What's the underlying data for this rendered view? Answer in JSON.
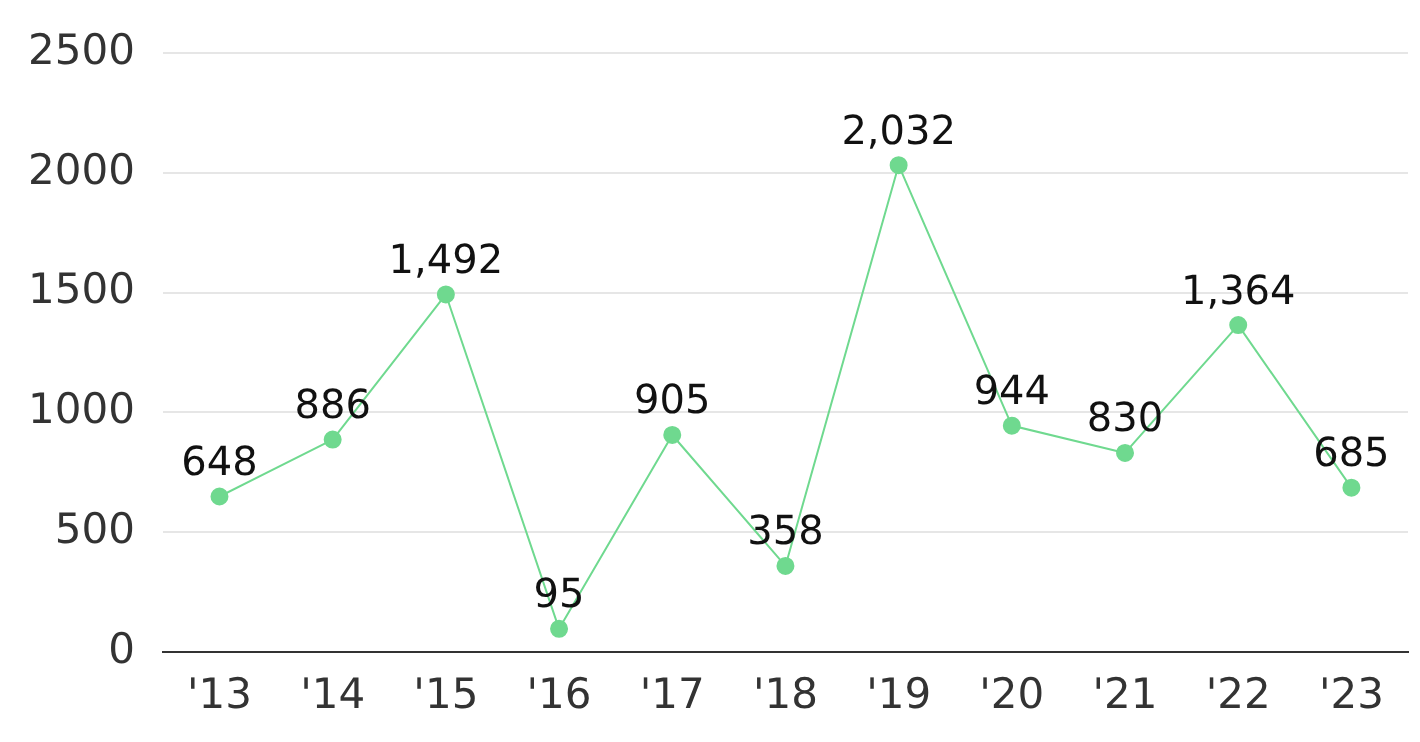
{
  "chart_data": {
    "type": "line",
    "categories": [
      "'13",
      "'14",
      "'15",
      "'16",
      "'17",
      "'18",
      "'19",
      "'20",
      "'21",
      "'22",
      "'23"
    ],
    "series": [
      {
        "color": "#6fd98f",
        "values": [
          648,
          886,
          1492,
          95,
          905,
          358,
          2032,
          944,
          830,
          1364,
          685
        ],
        "value_labels": [
          "648",
          "886",
          "1,492",
          "95",
          "905",
          "358",
          "2,032",
          "944",
          "830",
          "1,364",
          "685"
        ]
      }
    ],
    "ylim": [
      0,
      2500
    ],
    "yticks": [
      0,
      500,
      1000,
      1500,
      2000,
      2500
    ],
    "grid": "y",
    "legend": false,
    "marker": "circle",
    "line_style": "solid"
  }
}
